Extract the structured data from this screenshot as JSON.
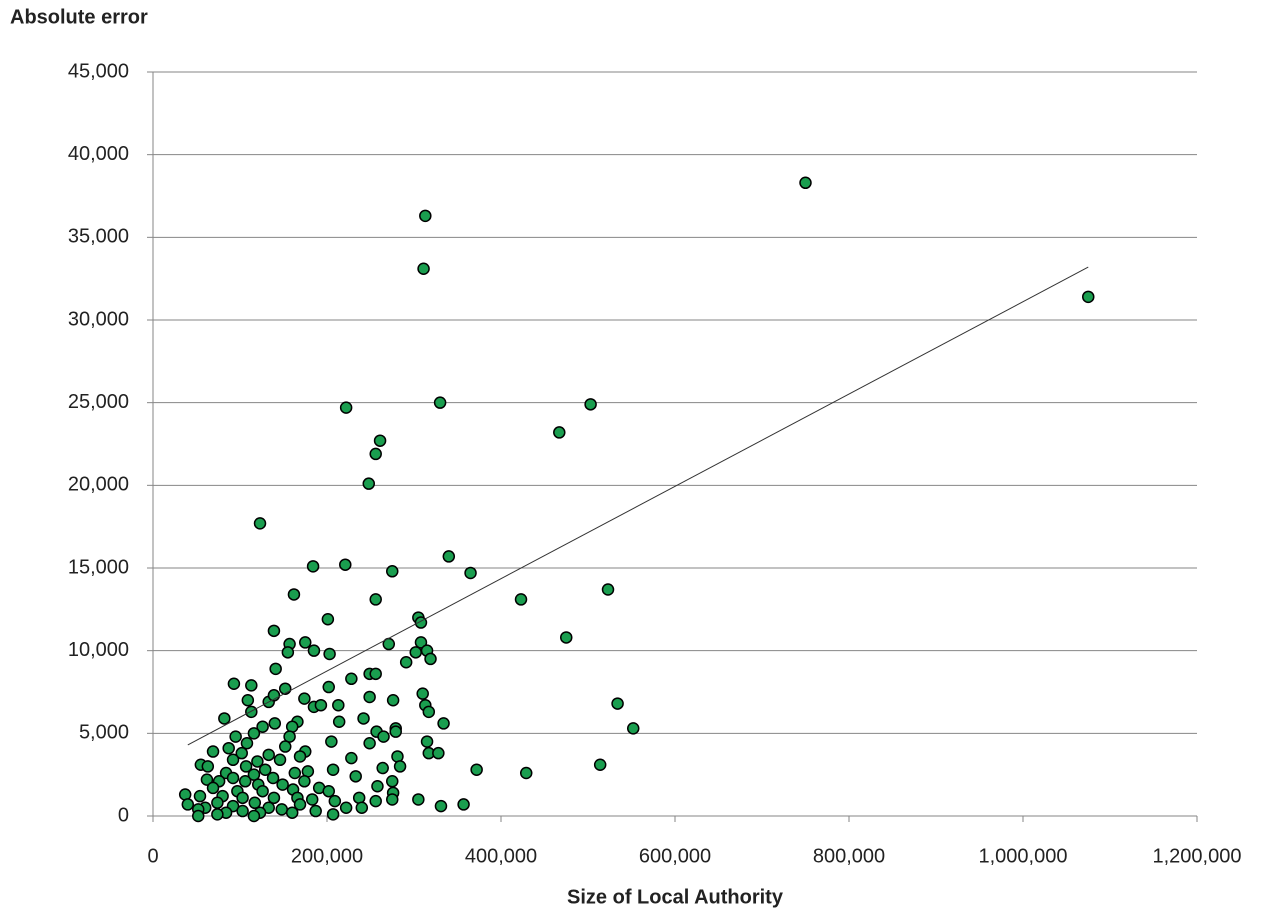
{
  "chart_data": {
    "type": "scatter",
    "y_axis_title": "Absolute error",
    "x_axis_title": "Size of Local Authority",
    "color": "#1a9e4f",
    "grid": true,
    "xlim": [
      0,
      1200000
    ],
    "ylim": [
      0,
      45000
    ],
    "xticks": [
      0,
      {
        "value": 200000,
        "label": "200,000"
      },
      {
        "value": 400000,
        "label": "400,000"
      },
      {
        "value": 600000,
        "label": "600,000"
      },
      {
        "value": 800000,
        "label": "800,000"
      },
      {
        "value": 1000000,
        "label": "1,000,000"
      },
      {
        "value": 1200000,
        "label": "1,200,000"
      }
    ],
    "yticks": [
      0,
      {
        "value": 5000,
        "label": "5,000"
      },
      {
        "value": 10000,
        "label": "10,000"
      },
      {
        "value": 15000,
        "label": "15,000"
      },
      {
        "value": 20000,
        "label": "20,000"
      },
      {
        "value": 25000,
        "label": "25,000"
      },
      {
        "value": 30000,
        "label": "30,000"
      },
      {
        "value": 35000,
        "label": "35,000"
      },
      {
        "value": 40000,
        "label": "40,000"
      },
      {
        "value": 45000,
        "label": "45,000"
      }
    ],
    "trendline": {
      "x": [
        40000,
        1075000
      ],
      "y": [
        4300,
        33200
      ]
    },
    "x": [
      750000,
      1075000,
      313000,
      311000,
      222000,
      330000,
      503000,
      467000,
      261000,
      256000,
      248000,
      123000,
      340000,
      221000,
      184000,
      275000,
      365000,
      162000,
      523000,
      423000,
      256000,
      305000,
      308000,
      201000,
      139000,
      475000,
      175000,
      157000,
      271000,
      308000,
      155000,
      185000,
      302000,
      315000,
      319000,
      203000,
      291000,
      141000,
      228000,
      249000,
      256000,
      93000,
      113000,
      152000,
      202000,
      174000,
      249000,
      310000,
      534000,
      109000,
      133000,
      139000,
      276000,
      313000,
      185000,
      193000,
      213000,
      317000,
      113000,
      82000,
      214000,
      242000,
      334000,
      140000,
      166000,
      126000,
      160000,
      552000,
      279000,
      279000,
      116000,
      257000,
      265000,
      157000,
      95000,
      249000,
      205000,
      315000,
      108000,
      87000,
      152000,
      69000,
      175000,
      169000,
      133000,
      317000,
      328000,
      102000,
      228000,
      281000,
      92000,
      120000,
      146000,
      55000,
      514000,
      63000,
      284000,
      264000,
      107000,
      372000,
      129000,
      207000,
      178000,
      429000,
      163000,
      84000,
      116000,
      233000,
      62000,
      92000,
      138000,
      76000,
      106000,
      275000,
      174000,
      149000,
      121000,
      258000,
      191000,
      69000,
      161000,
      97000,
      202000,
      126000,
      276000,
      37000,
      54000,
      80000,
      103000,
      166000,
      237000,
      139000,
      305000,
      183000,
      275000,
      209000,
      256000,
      117000,
      74000,
      40000,
      357000,
      169000,
      92000,
      331000,
      240000,
      222000,
      60000,
      133000,
      148000,
      52000,
      103000,
      187000,
      84000,
      123000,
      160000,
      207000,
      52000,
      74000,
      116000
    ],
    "y": [
      38300,
      31400,
      36300,
      33100,
      24700,
      25000,
      24900,
      23200,
      22700,
      21900,
      20100,
      17700,
      15700,
      15200,
      15100,
      14800,
      14700,
      13400,
      13700,
      13100,
      13100,
      12000,
      11700,
      11900,
      11200,
      10800,
      10500,
      10400,
      10400,
      10500,
      9900,
      10000,
      9900,
      10000,
      9500,
      9800,
      9300,
      8900,
      8300,
      8600,
      8600,
      8000,
      7900,
      7700,
      7800,
      7100,
      7200,
      7400,
      6800,
      7000,
      6900,
      7300,
      7000,
      6700,
      6600,
      6700,
      6700,
      6300,
      6300,
      5900,
      5700,
      5900,
      5600,
      5600,
      5700,
      5400,
      5400,
      5300,
      5300,
      5100,
      5000,
      5100,
      4800,
      4800,
      4800,
      4400,
      4500,
      4500,
      4400,
      4100,
      4200,
      3900,
      3900,
      3600,
      3700,
      3800,
      3800,
      3800,
      3500,
      3600,
      3400,
      3300,
      3400,
      3100,
      3100,
      3000,
      3000,
      2900,
      3000,
      2800,
      2800,
      2800,
      2700,
      2600,
      2600,
      2600,
      2500,
      2400,
      2200,
      2300,
      2300,
      2100,
      2100,
      2100,
      2100,
      1900,
      1900,
      1800,
      1700,
      1700,
      1600,
      1500,
      1500,
      1500,
      1400,
      1300,
      1200,
      1200,
      1100,
      1100,
      1100,
      1100,
      1000,
      1000,
      1000,
      900,
      900,
      800,
      800,
      700,
      700,
      700,
      600,
      600,
      500,
      500,
      500,
      500,
      400,
      400,
      300,
      300,
      200,
      200,
      200,
      100,
      0,
      100,
      0
    ]
  }
}
